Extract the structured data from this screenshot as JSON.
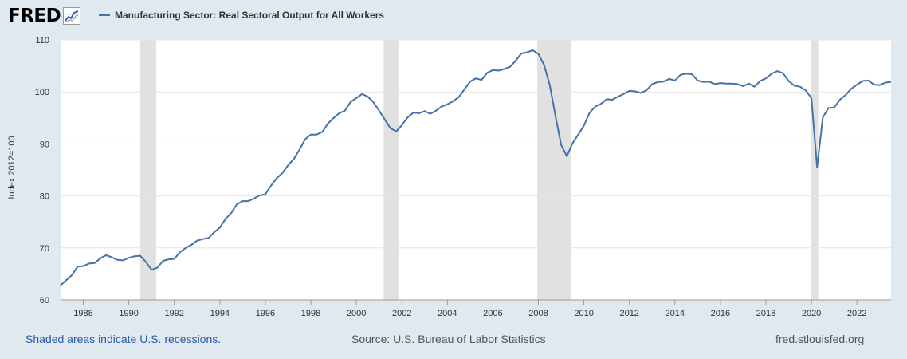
{
  "header": {
    "logo_text": "FRED",
    "legend_label": "Manufacturing Sector: Real Sectoral Output for All Workers",
    "series_color": "#4572a7"
  },
  "footer": {
    "recessions_note": "Shaded areas indicate U.S. recessions.",
    "source": "Source: U.S. Bureau of Labor Statistics",
    "site": "fred.stlouisfed.org"
  },
  "chart_data": {
    "type": "line",
    "title": "",
    "xlabel": "",
    "ylabel": "Index 2012=100",
    "ylim": [
      60,
      110
    ],
    "xlim": [
      1987.0,
      2023.5
    ],
    "yticks": [
      60,
      70,
      80,
      90,
      100,
      110
    ],
    "xticks": [
      1988,
      1990,
      1992,
      1994,
      1996,
      1998,
      2000,
      2002,
      2004,
      2006,
      2008,
      2010,
      2012,
      2014,
      2016,
      2018,
      2020,
      2022
    ],
    "grid": true,
    "legend_position": "top-left",
    "recessions": [
      [
        1990.5,
        1991.2
      ],
      [
        2001.2,
        2001.85
      ],
      [
        2007.95,
        2009.45
      ],
      [
        2020.0,
        2020.3
      ]
    ],
    "series": [
      {
        "name": "Manufacturing Sector: Real Sectoral Output for All Workers",
        "color": "#4572a7",
        "x": [
          1987.0,
          1987.25,
          1987.5,
          1987.75,
          1988.0,
          1988.25,
          1988.5,
          1988.75,
          1989.0,
          1989.25,
          1989.5,
          1989.75,
          1990.0,
          1990.25,
          1990.5,
          1990.75,
          1991.0,
          1991.25,
          1991.5,
          1991.75,
          1992.0,
          1992.25,
          1992.5,
          1992.75,
          1993.0,
          1993.25,
          1993.5,
          1993.75,
          1994.0,
          1994.25,
          1994.5,
          1994.75,
          1995.0,
          1995.25,
          1995.5,
          1995.75,
          1996.0,
          1996.25,
          1996.5,
          1996.75,
          1997.0,
          1997.25,
          1997.5,
          1997.75,
          1998.0,
          1998.25,
          1998.5,
          1998.75,
          1999.0,
          1999.25,
          1999.5,
          1999.75,
          2000.0,
          2000.25,
          2000.5,
          2000.75,
          2001.0,
          2001.25,
          2001.5,
          2001.75,
          2002.0,
          2002.25,
          2002.5,
          2002.75,
          2003.0,
          2003.25,
          2003.5,
          2003.75,
          2004.0,
          2004.25,
          2004.5,
          2004.75,
          2005.0,
          2005.25,
          2005.5,
          2005.75,
          2006.0,
          2006.25,
          2006.5,
          2006.75,
          2007.0,
          2007.25,
          2007.5,
          2007.75,
          2008.0,
          2008.25,
          2008.5,
          2008.75,
          2009.0,
          2009.25,
          2009.5,
          2009.75,
          2010.0,
          2010.25,
          2010.5,
          2010.75,
          2011.0,
          2011.25,
          2011.5,
          2011.75,
          2012.0,
          2012.25,
          2012.5,
          2012.75,
          2013.0,
          2013.25,
          2013.5,
          2013.75,
          2014.0,
          2014.25,
          2014.5,
          2014.75,
          2015.0,
          2015.25,
          2015.5,
          2015.75,
          2016.0,
          2016.25,
          2016.5,
          2016.75,
          2017.0,
          2017.25,
          2017.5,
          2017.75,
          2018.0,
          2018.25,
          2018.5,
          2018.75,
          2019.0,
          2019.25,
          2019.5,
          2019.75,
          2020.0,
          2020.25,
          2020.5,
          2020.75,
          2021.0,
          2021.25,
          2021.5,
          2021.75,
          2022.0,
          2022.25,
          2022.5,
          2022.75,
          2023.0,
          2023.25,
          2023.5
        ],
        "y": [
          62.8,
          63.8,
          64.8,
          66.4,
          66.5,
          67.0,
          67.1,
          68.0,
          68.6,
          68.2,
          67.7,
          67.6,
          68.1,
          68.4,
          68.5,
          67.3,
          65.8,
          66.2,
          67.5,
          67.8,
          67.9,
          69.2,
          70.0,
          70.6,
          71.4,
          71.7,
          71.9,
          73.0,
          73.9,
          75.6,
          76.7,
          78.4,
          79.0,
          79.0,
          79.5,
          80.1,
          80.3,
          82.0,
          83.4,
          84.4,
          85.9,
          87.1,
          88.9,
          90.9,
          91.8,
          91.8,
          92.3,
          93.9,
          95.0,
          95.9,
          96.4,
          98.1,
          98.8,
          99.6,
          99.1,
          98.0,
          96.4,
          94.7,
          93.0,
          92.4,
          93.6,
          95.1,
          96.0,
          95.9,
          96.3,
          95.8,
          96.4,
          97.2,
          97.6,
          98.2,
          99.0,
          100.5,
          102.0,
          102.6,
          102.3,
          103.7,
          104.2,
          104.1,
          104.4,
          104.8,
          106.0,
          107.4,
          107.6,
          108.0,
          107.3,
          105.2,
          101.3,
          95.4,
          89.8,
          87.6,
          90.1,
          91.8,
          93.5,
          96.0,
          97.2,
          97.7,
          98.6,
          98.5,
          99.1,
          99.6,
          100.2,
          100.1,
          99.8,
          100.3,
          101.5,
          101.9,
          102.0,
          102.5,
          102.2,
          103.3,
          103.5,
          103.4,
          102.2,
          101.9,
          102.0,
          101.5,
          101.7,
          101.6,
          101.6,
          101.5,
          101.1,
          101.6,
          101.0,
          102.1,
          102.6,
          103.5,
          104.0,
          103.6,
          102.1,
          101.2,
          101.0,
          100.3,
          98.8,
          85.5,
          95.1,
          96.9,
          97.0,
          98.5,
          99.4,
          100.6,
          101.4,
          102.1,
          102.2,
          101.4,
          101.3,
          101.8,
          101.9
        ]
      }
    ]
  }
}
